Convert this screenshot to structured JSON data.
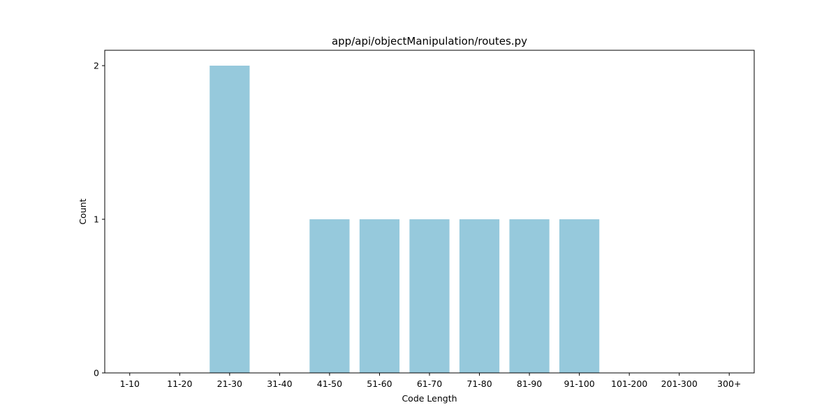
{
  "chart_data": {
    "type": "bar",
    "title": "app/api/objectManipulation/routes.py",
    "xlabel": "Code Length",
    "ylabel": "Count",
    "categories": [
      "1-10",
      "11-20",
      "21-30",
      "31-40",
      "41-50",
      "51-60",
      "61-70",
      "71-80",
      "81-90",
      "91-100",
      "101-200",
      "201-300",
      "300+"
    ],
    "values": [
      0,
      0,
      2,
      0,
      1,
      1,
      1,
      1,
      1,
      1,
      0,
      0,
      0
    ],
    "ylim": [
      0,
      2.1
    ],
    "yticks": [
      0,
      1,
      2
    ],
    "grid": false,
    "legend": "none",
    "bar_color": "#96c9dc"
  }
}
